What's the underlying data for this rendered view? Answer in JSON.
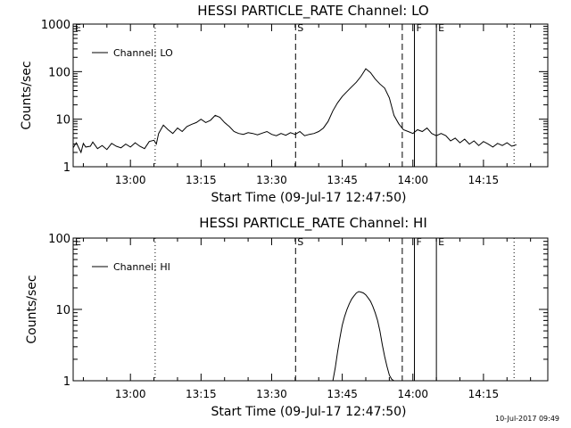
{
  "chart_data": [
    {
      "type": "line",
      "title": "HESSI PARTICLE_RATE Channel: LO",
      "xlabel": "Start Time (09-Jul-17 12:47:50)",
      "ylabel": "Counts/sec",
      "yscale": "log",
      "ylim": [
        1,
        1000
      ],
      "yticks": [
        "1",
        "10",
        "100",
        "1000"
      ],
      "xlim": [
        "12:47:50",
        "14:28:40"
      ],
      "xticks": [
        "13:00",
        "13:15",
        "13:30",
        "13:45",
        "14:00",
        "14:15"
      ],
      "legend": "top-left",
      "grid": false,
      "series": [
        {
          "name": "Channel: LO",
          "x": [
            "12:47:50",
            "12:48:30",
            "12:49:30",
            "12:50:00",
            "12:50:30",
            "12:51:30",
            "12:52:00",
            "12:53:00",
            "12:54:00",
            "12:55:00",
            "12:56:00",
            "12:57:00",
            "12:58:00",
            "12:59:00",
            "13:00:00",
            "13:01:00",
            "13:02:00",
            "13:03:00",
            "13:04:00",
            "13:05:00",
            "13:05:30",
            "13:06:00",
            "13:07:00",
            "13:08:00",
            "13:09:00",
            "13:10:00",
            "13:11:00",
            "13:12:00",
            "13:13:00",
            "13:14:00",
            "13:15:00",
            "13:16:00",
            "13:17:00",
            "13:18:00",
            "13:19:00",
            "13:20:00",
            "13:21:00",
            "13:22:00",
            "13:23:00",
            "13:24:00",
            "13:25:00",
            "13:26:00",
            "13:27:00",
            "13:28:00",
            "13:29:00",
            "13:30:00",
            "13:31:00",
            "13:32:00",
            "13:33:00",
            "13:34:00",
            "13:35:00",
            "13:36:00",
            "13:37:00",
            "13:38:00",
            "13:39:00",
            "13:40:00",
            "13:41:00",
            "13:42:00",
            "13:43:00",
            "13:44:00",
            "13:45:00",
            "13:46:00",
            "13:47:00",
            "13:48:00",
            "13:49:00",
            "13:50:00",
            "13:51:00",
            "13:52:00",
            "13:53:00",
            "13:54:00",
            "13:55:00",
            "13:56:00",
            "13:57:00",
            "13:58:00",
            "13:59:00",
            "14:00:00",
            "14:01:00",
            "14:02:00",
            "14:03:00",
            "14:04:00",
            "14:05:00",
            "14:06:00",
            "14:07:00",
            "14:08:00",
            "14:09:00",
            "14:10:00",
            "14:11:00",
            "14:12:00",
            "14:13:00",
            "14:14:00",
            "14:15:00",
            "14:16:00",
            "14:17:00",
            "14:18:00",
            "14:19:00",
            "14:20:00",
            "14:21:00",
            "14:22:00"
          ],
          "y": [
            2.5,
            3.2,
            2.0,
            3.1,
            2.6,
            2.7,
            3.3,
            2.4,
            2.8,
            2.3,
            3.1,
            2.7,
            2.5,
            3.0,
            2.6,
            3.2,
            2.7,
            2.4,
            3.4,
            3.6,
            3.0,
            5.0,
            7.5,
            6.0,
            5.0,
            6.5,
            5.5,
            7.0,
            7.8,
            8.5,
            10.0,
            8.5,
            9.5,
            12.0,
            11.0,
            8.5,
            7.0,
            5.5,
            5.0,
            4.8,
            5.2,
            5.0,
            4.7,
            5.1,
            5.5,
            4.8,
            4.5,
            5.0,
            4.6,
            5.2,
            4.8,
            5.5,
            4.5,
            4.8,
            5.0,
            5.5,
            6.5,
            9.0,
            15.0,
            22.0,
            30.0,
            38.0,
            48.0,
            60.0,
            80.0,
            115.0,
            95.0,
            70.0,
            55.0,
            45.0,
            28.0,
            12.0,
            8.0,
            6.0,
            5.5,
            5.0,
            6.0,
            5.5,
            6.5,
            5.0,
            4.5,
            5.0,
            4.5,
            3.5,
            4.0,
            3.2,
            3.8,
            3.0,
            3.5,
            2.8,
            3.4,
            3.0,
            2.6,
            3.1,
            2.8,
            3.2,
            2.7,
            2.9
          ]
        }
      ]
    },
    {
      "type": "line",
      "title": "HESSI PARTICLE_RATE Channel: HI",
      "xlabel": "Start Time (09-Jul-17 12:47:50)",
      "ylabel": "Counts/sec",
      "yscale": "log",
      "ylim": [
        1,
        100
      ],
      "yticks": [
        "1",
        "10",
        "100"
      ],
      "xlim": [
        "12:47:50",
        "14:28:40"
      ],
      "xticks": [
        "13:00",
        "13:15",
        "13:30",
        "13:45",
        "14:00",
        "14:15"
      ],
      "legend": "top-left",
      "grid": false,
      "series": [
        {
          "name": "Channel: HI",
          "x": [
            "13:43:00",
            "13:43:30",
            "13:44:00",
            "13:44:30",
            "13:45:00",
            "13:45:30",
            "13:46:00",
            "13:46:30",
            "13:47:00",
            "13:47:30",
            "13:48:00",
            "13:48:30",
            "13:49:00",
            "13:49:30",
            "13:50:00",
            "13:50:30",
            "13:51:00",
            "13:51:30",
            "13:52:00",
            "13:52:30",
            "13:53:00",
            "13:53:30",
            "13:54:00",
            "13:54:30",
            "13:55:00",
            "13:55:30",
            "13:56:00"
          ],
          "y": [
            1.0,
            1.5,
            2.5,
            4.0,
            6.0,
            8.0,
            10.0,
            12.0,
            14.0,
            15.5,
            17.0,
            17.8,
            17.5,
            17.0,
            16.0,
            14.5,
            13.0,
            11.0,
            9.0,
            7.0,
            5.0,
            3.2,
            2.2,
            1.6,
            1.2,
            1.05,
            1.0
          ]
        }
      ]
    }
  ],
  "markers": [
    "S",
    "F",
    "E"
  ],
  "edge_markers": [
    "E",
    "E"
  ],
  "timestamp": "10-Jul-2017 09:49",
  "colors": {
    "line": "#000000",
    "background": "#ffffff"
  }
}
